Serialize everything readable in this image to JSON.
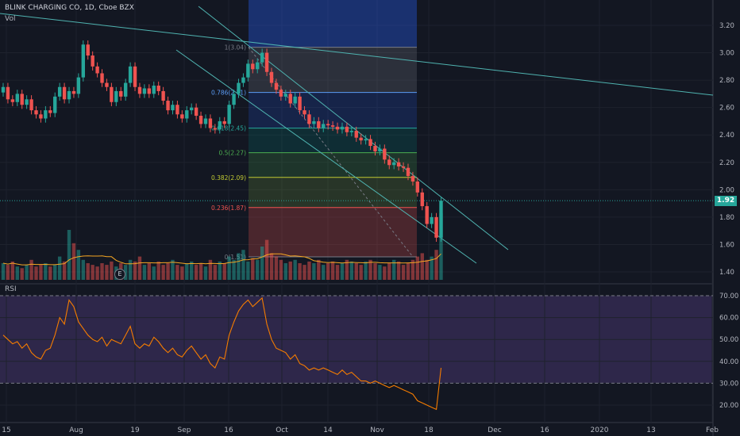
{
  "header": {
    "title": "BLINK CHARGING CO, 1D, Cboe BZX",
    "vol_label": "Vol",
    "rsi_label": "RSI"
  },
  "markers": {
    "earnings": "E",
    "last_price": "1.92"
  },
  "colors": {
    "up": "#26a69a",
    "down": "#ef5350",
    "rsi": "#f57c00",
    "channel": "#4fb3b0"
  },
  "chart_data": [
    {
      "type": "candlestick",
      "x_ticks": [
        "15",
        "Aug",
        "19",
        "Sep",
        "16",
        "Oct",
        "14",
        "Nov",
        "18",
        "Dec",
        "16",
        "2020",
        "13",
        "Feb"
      ],
      "y_ticks": [
        "3.20",
        "3.00",
        "2.80",
        "2.60",
        "2.40",
        "2.20",
        "2.00",
        "1.80",
        "1.60",
        "1.40"
      ],
      "ylim": [
        1.32,
        3.3
      ],
      "last_price": 1.92,
      "fib_levels": [
        {
          "label": "1(3.04)",
          "value": 3.04,
          "color": "#787b86"
        },
        {
          "label": "0.786(2.71)",
          "value": 2.71,
          "color": "#5b9cf6"
        },
        {
          "label": "0.618(2.45)",
          "value": 2.45,
          "color": "#26a69a"
        },
        {
          "label": "0.5(2.27)",
          "value": 2.27,
          "color": "#4caf50"
        },
        {
          "label": "0.382(2.09)",
          "value": 2.09,
          "color": "#c0ca33"
        },
        {
          "label": "0.236(1.87)",
          "value": 1.87,
          "color": "#ef5350"
        },
        {
          "label": "0(1.51)",
          "value": 1.51,
          "color": "#787b86"
        }
      ],
      "closes": [
        2.75,
        2.66,
        2.64,
        2.7,
        2.62,
        2.66,
        2.58,
        2.55,
        2.52,
        2.58,
        2.56,
        2.68,
        2.75,
        2.66,
        2.72,
        2.7,
        2.82,
        3.06,
        2.98,
        2.9,
        2.85,
        2.78,
        2.75,
        2.64,
        2.72,
        2.68,
        2.78,
        2.9,
        2.75,
        2.7,
        2.74,
        2.7,
        2.76,
        2.72,
        2.65,
        2.58,
        2.62,
        2.55,
        2.52,
        2.58,
        2.6,
        2.54,
        2.48,
        2.52,
        2.45,
        2.44,
        2.5,
        2.48,
        2.62,
        2.7,
        2.78,
        2.82,
        2.92,
        2.88,
        2.93,
        3.0,
        2.86,
        2.78,
        2.73,
        2.68,
        2.7,
        2.63,
        2.68,
        2.58,
        2.55,
        2.48,
        2.5,
        2.45,
        2.48,
        2.47,
        2.46,
        2.44,
        2.46,
        2.42,
        2.43,
        2.38,
        2.36,
        2.37,
        2.32,
        2.28,
        2.3,
        2.22,
        2.18,
        2.2,
        2.17,
        2.16,
        2.1,
        2.06,
        1.98,
        1.88,
        1.75,
        1.8,
        1.65,
        1.92
      ],
      "volume": [
        10,
        9,
        11,
        8,
        7,
        9,
        12,
        8,
        9,
        10,
        8,
        9,
        14,
        11,
        30,
        22,
        18,
        12,
        10,
        9,
        8,
        10,
        9,
        11,
        8,
        10,
        9,
        12,
        11,
        14,
        9,
        10,
        8,
        11,
        9,
        10,
        12,
        9,
        8,
        10,
        11,
        9,
        10,
        8,
        12,
        9,
        11,
        10,
        14,
        12,
        16,
        18,
        11,
        13,
        12,
        20,
        24,
        16,
        14,
        12,
        10,
        11,
        12,
        10,
        9,
        11,
        10,
        12,
        9,
        10,
        11,
        9,
        10,
        12,
        11,
        10,
        9,
        11,
        12,
        10,
        9,
        8,
        10,
        12,
        11,
        9,
        10,
        12,
        14,
        16,
        12,
        14,
        18,
        40
      ]
    },
    {
      "type": "line",
      "name": "RSI",
      "y_ticks": [
        "70.00",
        "60.00",
        "50.00",
        "40.00",
        "30.00",
        "20.00"
      ],
      "ylim": [
        15,
        77
      ],
      "bands": [
        30,
        70
      ],
      "values": [
        52,
        50,
        48,
        49,
        46,
        48,
        44,
        42,
        41,
        45,
        46,
        52,
        60,
        57,
        68,
        65,
        58,
        55,
        52,
        50,
        49,
        51,
        47,
        50,
        49,
        48,
        52,
        56,
        48,
        46,
        48,
        47,
        51,
        49,
        46,
        44,
        46,
        43,
        42,
        45,
        47,
        44,
        41,
        43,
        39,
        37,
        42,
        41,
        52,
        58,
        63,
        66,
        68,
        65,
        67,
        69,
        57,
        50,
        46,
        45,
        44,
        41,
        43,
        39,
        38,
        36,
        37,
        36,
        37,
        36,
        35,
        34,
        36,
        34,
        35,
        33,
        31,
        31,
        30,
        31,
        30,
        29,
        28,
        29,
        28,
        27,
        26,
        25,
        22,
        21,
        20,
        19,
        18,
        37
      ]
    }
  ]
}
